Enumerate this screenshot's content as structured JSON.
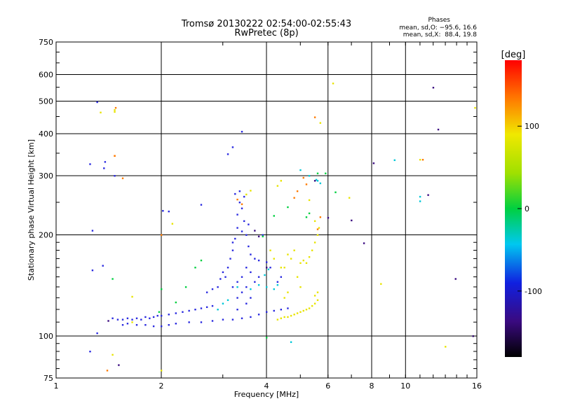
{
  "chart_data": {
    "type": "scatter",
    "title": "Tromsø 20130222 02:54:00-02:55:43",
    "subtitle": "RwPretec (8p)",
    "xlabel": "Frequency [MHz]",
    "ylabel": "Stationary phase Virtual Height [km]",
    "xscale": "log",
    "yscale": "log",
    "xlim": [
      1,
      16
    ],
    "ylim": [
      75,
      750
    ],
    "xticks": [
      1,
      2,
      4,
      6,
      8,
      10,
      16
    ],
    "yticks": [
      75,
      100,
      200,
      300,
      400,
      500,
      600,
      750
    ],
    "grid": true,
    "colorbar": {
      "label": "[deg]",
      "range": [
        -180,
        180
      ],
      "ticks": [
        100,
        0,
        -100
      ],
      "colormap": "rainbow"
    },
    "stats": {
      "heading": "Phases",
      "o_line": "mean, sd,O: −95.6, 16.6",
      "x_line": "mean, sd,X:  88.4, 19.8"
    },
    "series": [
      {
        "points": [
          [
            1.45,
            113
          ],
          [
            1.5,
            112
          ],
          [
            1.55,
            112
          ],
          [
            1.6,
            113
          ],
          [
            1.65,
            112
          ],
          [
            1.7,
            113
          ],
          [
            1.75,
            112
          ],
          [
            1.8,
            114
          ],
          [
            1.85,
            113
          ],
          [
            1.9,
            114
          ],
          [
            1.95,
            115
          ],
          [
            2.0,
            115
          ],
          [
            2.1,
            116
          ],
          [
            2.2,
            117
          ],
          [
            2.3,
            118
          ],
          [
            2.4,
            119
          ],
          [
            2.5,
            120
          ],
          [
            2.6,
            121
          ],
          [
            2.7,
            122
          ],
          [
            2.8,
            123
          ],
          [
            1.55,
            108
          ],
          [
            1.6,
            109
          ],
          [
            1.7,
            108
          ],
          [
            1.8,
            108
          ],
          [
            1.9,
            107
          ],
          [
            2.0,
            107
          ],
          [
            2.1,
            108
          ],
          [
            2.2,
            109
          ],
          [
            2.4,
            110
          ],
          [
            2.6,
            110
          ],
          [
            2.8,
            111
          ],
          [
            3.0,
            112
          ],
          [
            3.2,
            112
          ],
          [
            3.4,
            113
          ],
          [
            3.6,
            114
          ],
          [
            3.8,
            116
          ],
          [
            4.0,
            118
          ],
          [
            4.2,
            119
          ],
          [
            4.4,
            120
          ],
          [
            4.6,
            121
          ],
          [
            3.05,
            150
          ],
          [
            3.1,
            160
          ],
          [
            3.15,
            170
          ],
          [
            3.2,
            180
          ],
          [
            3.25,
            195
          ],
          [
            3.3,
            210
          ],
          [
            3.3,
            230
          ],
          [
            3.35,
            250
          ],
          [
            3.35,
            270
          ],
          [
            3.4,
            240
          ],
          [
            3.45,
            220
          ],
          [
            3.5,
            200
          ],
          [
            3.55,
            185
          ],
          [
            3.6,
            175
          ],
          [
            3.7,
            170
          ],
          [
            3.8,
            168
          ],
          [
            4.0,
            166
          ],
          [
            2.9,
            140
          ],
          [
            2.95,
            148
          ],
          [
            3.0,
            155
          ],
          [
            2.7,
            135
          ],
          [
            2.8,
            138
          ],
          [
            3.2,
            140
          ],
          [
            3.3,
            145
          ],
          [
            3.4,
            150
          ],
          [
            3.5,
            160
          ],
          [
            3.6,
            155
          ],
          [
            3.3,
            130
          ],
          [
            3.4,
            135
          ],
          [
            3.5,
            140
          ],
          [
            3.2,
            190
          ],
          [
            3.4,
            205
          ],
          [
            3.55,
            215
          ],
          [
            3.45,
            260
          ],
          [
            3.25,
            265
          ],
          [
            3.3,
            120
          ],
          [
            3.5,
            125
          ],
          [
            3.6,
            130
          ],
          [
            3.7,
            145
          ],
          [
            3.8,
            150
          ],
          [
            4.3,
            145
          ],
          [
            4.4,
            150
          ],
          [
            4.1,
            160
          ],
          [
            3.9,
            200
          ],
          [
            3.2,
            365
          ],
          [
            3.4,
            406
          ],
          [
            3.1,
            348
          ],
          [
            1.31,
            497
          ],
          [
            1.25,
            325
          ],
          [
            1.27,
            206
          ],
          [
            1.47,
            300
          ],
          [
            1.37,
            316
          ],
          [
            1.38,
            330
          ],
          [
            1.27,
            157
          ],
          [
            1.36,
            162
          ],
          [
            1.31,
            102
          ],
          [
            1.25,
            90
          ],
          [
            2.02,
            236
          ],
          [
            2.1,
            235
          ],
          [
            2.6,
            246
          ]
        ],
        "color": "#2a2ae0"
      },
      {
        "points": [
          [
            4.3,
            112
          ],
          [
            4.4,
            113
          ],
          [
            4.5,
            114
          ],
          [
            4.6,
            114
          ],
          [
            4.7,
            115
          ],
          [
            4.8,
            116
          ],
          [
            4.9,
            117
          ],
          [
            5.0,
            118
          ],
          [
            5.1,
            119
          ],
          [
            5.2,
            120
          ],
          [
            5.3,
            121
          ],
          [
            5.4,
            123
          ],
          [
            5.5,
            125
          ],
          [
            5.6,
            128
          ],
          [
            5.5,
            132
          ],
          [
            5.6,
            135
          ],
          [
            5.2,
            165
          ],
          [
            5.3,
            172
          ],
          [
            5.4,
            180
          ],
          [
            5.5,
            190
          ],
          [
            5.6,
            200
          ],
          [
            5.65,
            210
          ],
          [
            5.5,
            220
          ],
          [
            5.1,
            168
          ],
          [
            5.0,
            165
          ],
          [
            4.8,
            180
          ],
          [
            4.7,
            170
          ],
          [
            4.6,
            175
          ],
          [
            4.5,
            160
          ],
          [
            4.9,
            150
          ],
          [
            5.0,
            140
          ],
          [
            4.6,
            135
          ],
          [
            4.5,
            130
          ],
          [
            4.4,
            160
          ],
          [
            4.2,
            170
          ],
          [
            4.1,
            180
          ],
          [
            1.34,
            463
          ],
          [
            1.47,
            465
          ],
          [
            1.47,
            471
          ],
          [
            1.65,
            131
          ],
          [
            1.65,
            110
          ],
          [
            2.15,
            216
          ],
          [
            5.7,
            431
          ],
          [
            6.2,
            565
          ],
          [
            11.0,
            335
          ],
          [
            8.5,
            143
          ],
          [
            6.9,
            258
          ],
          [
            15.8,
            478
          ],
          [
            3.5,
            264
          ],
          [
            3.6,
            271
          ],
          [
            1.45,
            88
          ],
          [
            2.0,
            79
          ],
          [
            13.0,
            93
          ],
          [
            4.3,
            280
          ],
          [
            4.4,
            290
          ],
          [
            5.3,
            254
          ]
        ],
        "color": "#e8e400"
      },
      {
        "points": [
          [
            3.0,
            125
          ],
          [
            3.1,
            128
          ],
          [
            3.3,
            140
          ],
          [
            3.6,
            138
          ],
          [
            3.8,
            142
          ],
          [
            4.0,
            140
          ],
          [
            4.2,
            138
          ],
          [
            4.3,
            142
          ],
          [
            3.95,
            152
          ],
          [
            4.05,
            158
          ],
          [
            4.7,
            96
          ],
          [
            5.0,
            312
          ],
          [
            5.3,
            300
          ],
          [
            9.3,
            334
          ],
          [
            11.0,
            252
          ],
          [
            11.0,
            260
          ],
          [
            5.6,
            290
          ],
          [
            5.7,
            285
          ],
          [
            5.55,
            292
          ],
          [
            2.9,
            120
          ]
        ],
        "color": "#00c8d8"
      },
      {
        "points": [
          [
            2.35,
            140
          ],
          [
            2.5,
            160
          ],
          [
            2.6,
            168
          ],
          [
            3.9,
            198
          ],
          [
            4.2,
            228
          ],
          [
            4.6,
            242
          ],
          [
            5.6,
            305
          ],
          [
            1.97,
            118
          ],
          [
            2.2,
            126
          ],
          [
            2.0,
            138
          ],
          [
            1.45,
            148
          ],
          [
            5.9,
            305
          ],
          [
            5.2,
            226
          ],
          [
            5.3,
            232
          ],
          [
            4.0,
            99
          ],
          [
            6.3,
            268
          ]
        ],
        "color": "#00d040"
      },
      {
        "points": [
          [
            1.48,
            478
          ],
          [
            1.55,
            295
          ],
          [
            1.47,
            344
          ],
          [
            1.47,
            344
          ],
          [
            11.2,
            335
          ],
          [
            4.8,
            258
          ],
          [
            4.9,
            270
          ],
          [
            5.5,
            448
          ],
          [
            5.6,
            208
          ],
          [
            5.7,
            226
          ],
          [
            2.0,
            200
          ],
          [
            1.4,
            79
          ],
          [
            3.4,
            247
          ],
          [
            3.3,
            255
          ],
          [
            5.1,
            296
          ],
          [
            5.2,
            283
          ]
        ],
        "color": "#ff7a00"
      },
      {
        "points": [
          [
            1.51,
            82
          ],
          [
            1.41,
            111
          ],
          [
            6.0,
            225
          ],
          [
            12.0,
            549
          ],
          [
            12.4,
            412
          ],
          [
            13.9,
            148
          ],
          [
            11.6,
            263
          ],
          [
            8.1,
            327
          ],
          [
            7.6,
            189
          ],
          [
            7.0,
            221
          ],
          [
            3.7,
            206
          ],
          [
            3.8,
            198
          ],
          [
            15.6,
            100
          ],
          [
            4.0,
            160
          ],
          [
            5.5,
            290
          ]
        ],
        "color": "#3a0a80"
      }
    ]
  }
}
